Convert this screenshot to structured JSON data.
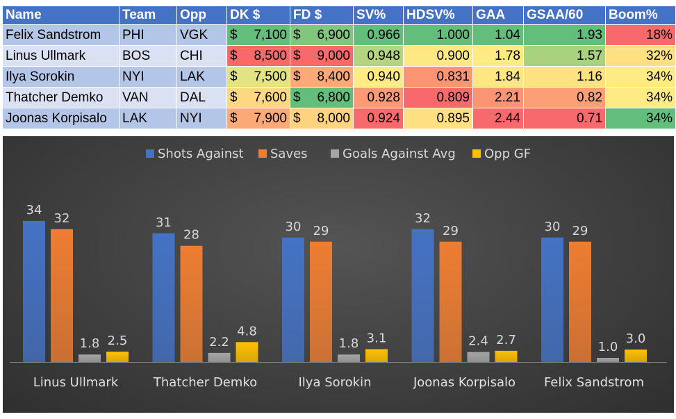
{
  "table": {
    "headers": [
      "Name",
      "Team",
      "Opp",
      "DK $",
      "FD $",
      "SV%",
      "HDSV%",
      "GAA",
      "GSAA/60",
      "Boom%"
    ],
    "rows": [
      {
        "name": "Felix Sandstrom",
        "team": "PHI",
        "opp": "VGK",
        "dk": "7,100",
        "fd": "6,900",
        "sv": "0.966",
        "hdsv": "1.000",
        "gaa": "1.04",
        "gsaa": "1.93",
        "boom": "18%"
      },
      {
        "name": "Linus Ullmark",
        "team": "BOS",
        "opp": "CHI",
        "dk": "8,500",
        "fd": "9,000",
        "sv": "0.948",
        "hdsv": "0.900",
        "gaa": "1.78",
        "gsaa": "1.57",
        "boom": "32%"
      },
      {
        "name": "Ilya Sorokin",
        "team": "NYI",
        "opp": "LAK",
        "dk": "7,500",
        "fd": "8,400",
        "sv": "0.940",
        "hdsv": "0.831",
        "gaa": "1.84",
        "gsaa": "1.16",
        "boom": "34%"
      },
      {
        "name": "Thatcher Demko",
        "team": "VAN",
        "opp": "DAL",
        "dk": "7,600",
        "fd": "6,800",
        "sv": "0.928",
        "hdsv": "0.809",
        "gaa": "2.21",
        "gsaa": "0.82",
        "boom": "34%"
      },
      {
        "name": "Joonas Korpisalo",
        "team": "LAK",
        "opp": "NYI",
        "dk": "7,900",
        "fd": "8,000",
        "sv": "0.924",
        "hdsv": "0.895",
        "gaa": "2.44",
        "gsaa": "0.71",
        "boom": "34%"
      }
    ],
    "currency_symbol": "$",
    "cell_colors": [
      {
        "dk": "#63be7b",
        "fd": "#80c77d",
        "sv": "#63be7b",
        "hdsv": "#63be7b",
        "gaa": "#63be7b",
        "gsaa": "#63be7b",
        "boom": "#f8696b"
      },
      {
        "dk": "#f8696b",
        "fd": "#f8696b",
        "sv": "#b5d480",
        "hdsv": "#fee883",
        "gaa": "#ffeb84",
        "gsaa": "#a9d27f",
        "boom": "#fedf81"
      },
      {
        "dk": "#e2e383",
        "fd": "#fbaa77",
        "sv": "#ffeb84",
        "hdsv": "#fa9473",
        "gaa": "#fee783",
        "gsaa": "#fee282",
        "boom": "#ffeb84"
      },
      {
        "dk": "#fdd880",
        "fd": "#63be7b",
        "sv": "#fb9a75",
        "hdsv": "#f8696b",
        "gaa": "#fa9473",
        "gsaa": "#fba076",
        "boom": "#ffeb84"
      },
      {
        "dk": "#fbaa77",
        "fd": "#fed380",
        "sv": "#f8696b",
        "hdsv": "#fee082",
        "gaa": "#f8696b",
        "gsaa": "#f8696b",
        "boom": "#63be7b"
      }
    ]
  },
  "chart_data": {
    "type": "bar",
    "categories": [
      "Linus Ullmark",
      "Thatcher Demko",
      "Ilya Sorokin",
      "Joonas Korpisalo",
      "Felix Sandstrom"
    ],
    "series": [
      {
        "name": "Shots Against",
        "values": [
          34,
          31,
          30,
          32,
          30
        ],
        "labels": [
          "34",
          "31",
          "30",
          "32",
          "30"
        ],
        "color": "#4472c4"
      },
      {
        "name": "Saves",
        "values": [
          32,
          28,
          29,
          29,
          29
        ],
        "labels": [
          "32",
          "28",
          "29",
          "29",
          "29"
        ],
        "color": "#ed7d31"
      },
      {
        "name": "Goals Against Avg",
        "values": [
          1.8,
          2.2,
          1.8,
          2.4,
          1.0
        ],
        "labels": [
          "1.8",
          "2.2",
          "1.8",
          "2.4",
          "1.0"
        ],
        "color": "#a5a5a5"
      },
      {
        "name": "Opp GF",
        "values": [
          2.5,
          4.8,
          3.1,
          2.7,
          3.0
        ],
        "labels": [
          "2.5",
          "4.8",
          "3.1",
          "2.7",
          "3.0"
        ],
        "color": "#ffc000"
      }
    ],
    "ylim": [
      0,
      38
    ],
    "legend_position": "top",
    "grid": false,
    "title": "",
    "xlabel": "",
    "ylabel": ""
  }
}
